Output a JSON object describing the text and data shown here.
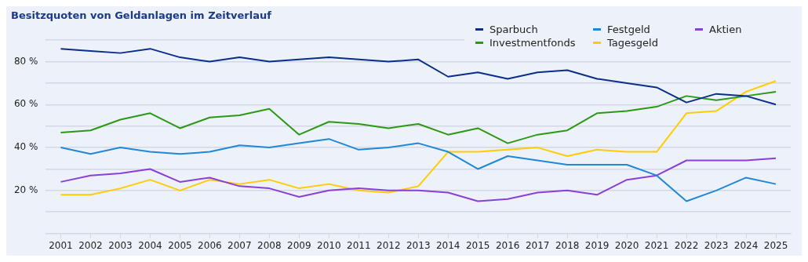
{
  "chart_data": {
    "type": "line",
    "title": "Besitzquoten von Geldanlagen im Zeitverlauf",
    "categories": [
      "2001",
      "2002",
      "2003",
      "2004",
      "2005",
      "2006",
      "2007",
      "2008",
      "2009",
      "2010",
      "2011",
      "2012",
      "2013",
      "2014",
      "2015",
      "2016",
      "2017",
      "2018",
      "2019",
      "2020",
      "2021",
      "2022",
      "2023",
      "2024",
      "2025"
    ],
    "series": [
      {
        "name": "Sparbuch",
        "color": "#0a2e8a",
        "values": [
          86,
          85,
          84,
          86,
          82,
          80,
          82,
          80,
          81,
          82,
          81,
          80,
          81,
          73,
          75,
          72,
          75,
          76,
          72,
          70,
          68,
          61,
          65,
          64,
          60
        ]
      },
      {
        "name": "Festgeld",
        "color": "#1f88d8",
        "values": [
          40,
          37,
          40,
          38,
          37,
          38,
          41,
          40,
          42,
          44,
          39,
          40,
          42,
          38,
          30,
          36,
          34,
          32,
          32,
          32,
          27,
          15,
          20,
          26,
          23
        ]
      },
      {
        "name": "Aktien",
        "color": "#8a3fd8",
        "values": [
          24,
          27,
          28,
          30,
          24,
          26,
          22,
          21,
          17,
          20,
          21,
          20,
          20,
          19,
          15,
          16,
          19,
          20,
          18,
          25,
          27,
          34,
          34,
          34,
          35
        ]
      },
      {
        "name": "Investmentfonds",
        "color": "#2a9a14",
        "values": [
          47,
          48,
          53,
          56,
          49,
          54,
          55,
          58,
          46,
          52,
          51,
          49,
          51,
          46,
          49,
          42,
          46,
          48,
          56,
          57,
          59,
          64,
          62,
          64,
          66
        ]
      },
      {
        "name": "Tagesgeld",
        "color": "#ffcc00",
        "values": [
          18,
          18,
          21,
          25,
          20,
          25,
          23,
          25,
          21,
          23,
          20,
          19,
          22,
          38,
          38,
          39,
          40,
          36,
          39,
          38,
          38,
          56,
          57,
          66,
          71
        ]
      }
    ],
    "ylim": [
      0,
      90
    ],
    "yticks": [
      {
        "value": 0,
        "label": null
      },
      {
        "value": 10,
        "label": null
      },
      {
        "value": 20,
        "label": "20 %"
      },
      {
        "value": 30,
        "label": null
      },
      {
        "value": 40,
        "label": "40 %"
      },
      {
        "value": 50,
        "label": null
      },
      {
        "value": 60,
        "label": "60 %"
      },
      {
        "value": 70,
        "label": null
      },
      {
        "value": 80,
        "label": "80 %"
      },
      {
        "value": 90,
        "label": null
      }
    ],
    "grid": "y",
    "legend": "top right",
    "marker": "none",
    "line_style": "solid"
  }
}
